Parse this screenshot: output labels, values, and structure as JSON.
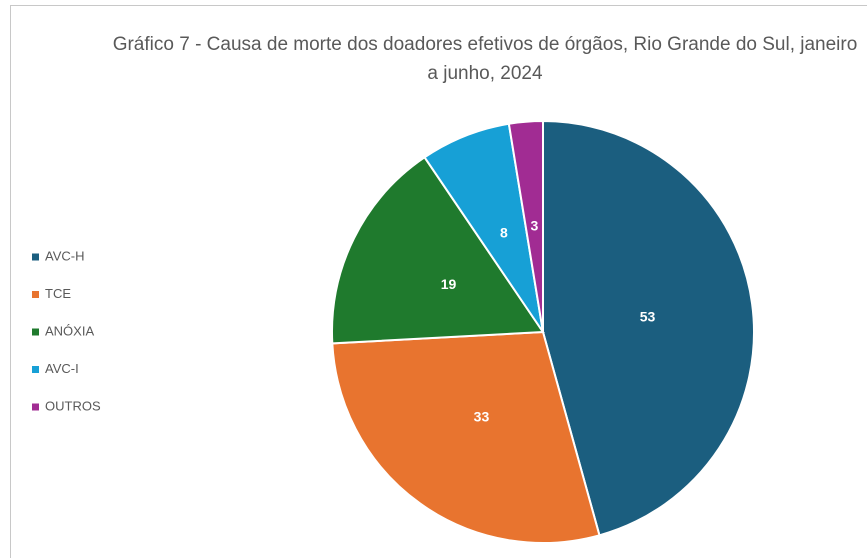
{
  "chart_data": {
    "type": "pie",
    "title": "Gráfico 7 - Causa de morte dos doadores efetivos de órgãos, Rio Grande do Sul, janeiro a junho, 2024",
    "categories": [
      "AVC-H",
      "TCE",
      "ANÓXIA",
      "AVC-I",
      "OUTROS"
    ],
    "values": [
      53,
      33,
      19,
      8,
      3
    ],
    "colors": [
      "#1b5e7f",
      "#e8742f",
      "#1f7a2d",
      "#17a0d6",
      "#a12c93"
    ],
    "legend": "left"
  }
}
